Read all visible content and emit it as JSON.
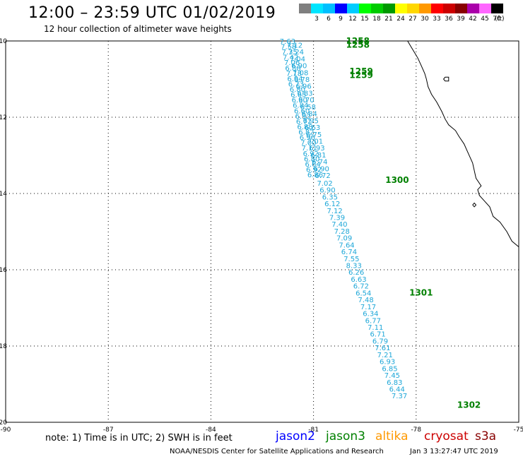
{
  "header": {
    "title": "12:00 – 23:59 UTC 01/02/2019",
    "subtitle": "12 hour collection of altimeter wave heights"
  },
  "colorbar": {
    "unit": "(ft)",
    "items": [
      {
        "label": "",
        "color": "#7f7f7f"
      },
      {
        "label": "3",
        "color": "#00e5ff"
      },
      {
        "label": "6",
        "color": "#00bfff"
      },
      {
        "label": "9",
        "color": "#0000ff"
      },
      {
        "label": "12",
        "color": "#00ccff"
      },
      {
        "label": "15",
        "color": "#00ff00"
      },
      {
        "label": "18",
        "color": "#00cc00"
      },
      {
        "label": "21",
        "color": "#009900"
      },
      {
        "label": "24",
        "color": "#ffff00"
      },
      {
        "label": "27",
        "color": "#ffd700"
      },
      {
        "label": "30",
        "color": "#ff9900"
      },
      {
        "label": "33",
        "color": "#ff0000"
      },
      {
        "label": "36",
        "color": "#cc0000"
      },
      {
        "label": "39",
        "color": "#880000"
      },
      {
        "label": "42",
        "color": "#aa00aa"
      },
      {
        "label": "45",
        "color": "#ff66ff"
      },
      {
        "label": "70",
        "color": "#000000"
      }
    ]
  },
  "map": {
    "lon_range": [
      -90,
      -75
    ],
    "lat_range": [
      -20,
      -10
    ],
    "lon_ticks": [
      {
        "value": -90,
        "label": "-90"
      },
      {
        "value": -87,
        "label": "-87"
      },
      {
        "value": -84,
        "label": "-84"
      },
      {
        "value": -81,
        "label": "-81"
      },
      {
        "value": -78,
        "label": "-78"
      },
      {
        "value": -75,
        "label": "-75"
      }
    ],
    "lat_ticks": [
      {
        "value": -10,
        "label": "-10"
      },
      {
        "value": -12,
        "label": "-12"
      },
      {
        "value": -14,
        "label": "-14"
      },
      {
        "value": -16,
        "label": "-16"
      },
      {
        "value": -18,
        "label": "-18"
      },
      {
        "value": -20,
        "label": "-20"
      }
    ],
    "track_color": "#1ea7d8",
    "time_color": "#008000",
    "coast_color": "#000000",
    "track_upper": [
      {
        "lon": -81.99,
        "lat": -10.0,
        "label": "7.63"
      },
      {
        "lon": -81.96,
        "lat": -10.14,
        "label": "7.58"
      },
      {
        "lon": -81.93,
        "lat": -10.28,
        "label": "7.35"
      },
      {
        "lon": -81.9,
        "lat": -10.42,
        "label": "7.42"
      },
      {
        "lon": -81.86,
        "lat": -10.56,
        "label": "7.06"
      },
      {
        "lon": -81.83,
        "lat": -10.7,
        "label": "6.88"
      },
      {
        "lon": -81.8,
        "lat": -10.84,
        "label": "7.18"
      },
      {
        "lon": -81.77,
        "lat": -10.98,
        "label": "6.94"
      },
      {
        "lon": -81.74,
        "lat": -11.12,
        "label": "6.73"
      },
      {
        "lon": -81.7,
        "lat": -11.26,
        "label": "6.80"
      },
      {
        "lon": -81.67,
        "lat": -11.4,
        "label": "6.65"
      },
      {
        "lon": -81.64,
        "lat": -11.54,
        "label": "6.90"
      },
      {
        "lon": -81.61,
        "lat": -11.68,
        "label": "6.84"
      },
      {
        "lon": -81.57,
        "lat": -11.82,
        "label": "6.60"
      },
      {
        "lon": -81.54,
        "lat": -11.96,
        "label": "6.92"
      },
      {
        "lon": -81.51,
        "lat": -12.1,
        "label": "6.71"
      },
      {
        "lon": -81.48,
        "lat": -12.24,
        "label": "6.88"
      },
      {
        "lon": -81.44,
        "lat": -12.38,
        "label": "6.82"
      },
      {
        "lon": -81.41,
        "lat": -12.52,
        "label": "6.96"
      },
      {
        "lon": -81.38,
        "lat": -12.66,
        "label": "7.00"
      },
      {
        "lon": -81.35,
        "lat": -12.8,
        "label": "7.11"
      },
      {
        "lon": -81.31,
        "lat": -12.94,
        "label": "6.92"
      },
      {
        "lon": -81.28,
        "lat": -13.08,
        "label": "6.80"
      },
      {
        "lon": -81.25,
        "lat": -13.22,
        "label": "6.64"
      },
      {
        "lon": -81.22,
        "lat": -13.36,
        "label": "6.92"
      },
      {
        "lon": -81.18,
        "lat": -13.5,
        "label": "6.86"
      }
    ],
    "track_upper2": [
      {
        "lon": -81.78,
        "lat": -10.1,
        "label": "7.12"
      },
      {
        "lon": -81.74,
        "lat": -10.28,
        "label": "7.24"
      },
      {
        "lon": -81.7,
        "lat": -10.46,
        "label": "7.04"
      },
      {
        "lon": -81.65,
        "lat": -10.64,
        "label": "6.90"
      },
      {
        "lon": -81.61,
        "lat": -10.82,
        "label": "7.08"
      },
      {
        "lon": -81.57,
        "lat": -11.0,
        "label": "6.78"
      },
      {
        "lon": -81.52,
        "lat": -11.18,
        "label": "6.96"
      },
      {
        "lon": -81.48,
        "lat": -11.36,
        "label": "6.83"
      },
      {
        "lon": -81.44,
        "lat": -11.54,
        "label": "6.70"
      },
      {
        "lon": -81.39,
        "lat": -11.72,
        "label": "6.58"
      },
      {
        "lon": -81.35,
        "lat": -11.9,
        "label": "6.84"
      },
      {
        "lon": -81.31,
        "lat": -12.08,
        "label": "6.95"
      },
      {
        "lon": -81.26,
        "lat": -12.26,
        "label": "6.63"
      },
      {
        "lon": -81.22,
        "lat": -12.44,
        "label": "6.75"
      },
      {
        "lon": -81.18,
        "lat": -12.62,
        "label": "7.01"
      },
      {
        "lon": -81.13,
        "lat": -12.8,
        "label": "6.93"
      },
      {
        "lon": -81.09,
        "lat": -12.98,
        "label": "6.81"
      },
      {
        "lon": -81.05,
        "lat": -13.16,
        "label": "6.74"
      },
      {
        "lon": -81.0,
        "lat": -13.34,
        "label": "6.90"
      },
      {
        "lon": -80.96,
        "lat": -13.52,
        "label": "6.72"
      }
    ],
    "track_lower": [
      {
        "lon": -80.9,
        "lat": -13.72,
        "label": "7.02"
      },
      {
        "lon": -80.82,
        "lat": -13.9,
        "label": "6.90"
      },
      {
        "lon": -80.75,
        "lat": -14.08,
        "label": "6.35"
      },
      {
        "lon": -80.68,
        "lat": -14.26,
        "label": "6.12"
      },
      {
        "lon": -80.61,
        "lat": -14.44,
        "label": "7.12"
      },
      {
        "lon": -80.54,
        "lat": -14.62,
        "label": "7.39"
      },
      {
        "lon": -80.47,
        "lat": -14.8,
        "label": "7.40"
      },
      {
        "lon": -80.4,
        "lat": -14.98,
        "label": "7.28"
      },
      {
        "lon": -80.33,
        "lat": -15.16,
        "label": "7.09"
      },
      {
        "lon": -80.26,
        "lat": -15.34,
        "label": "7.64"
      },
      {
        "lon": -80.19,
        "lat": -15.52,
        "label": "6.74"
      },
      {
        "lon": -80.12,
        "lat": -15.7,
        "label": "7.55"
      },
      {
        "lon": -80.05,
        "lat": -15.88,
        "label": "8.33"
      },
      {
        "lon": -79.98,
        "lat": -16.06,
        "label": "6.26"
      },
      {
        "lon": -79.91,
        "lat": -16.24,
        "label": "6.63"
      },
      {
        "lon": -79.84,
        "lat": -16.42,
        "label": "6.72"
      },
      {
        "lon": -79.77,
        "lat": -16.6,
        "label": "6.54"
      },
      {
        "lon": -79.7,
        "lat": -16.78,
        "label": "7.48"
      },
      {
        "lon": -79.63,
        "lat": -16.96,
        "label": "7.17"
      },
      {
        "lon": -79.56,
        "lat": -17.14,
        "label": "6.34"
      },
      {
        "lon": -79.49,
        "lat": -17.32,
        "label": "6.77"
      },
      {
        "lon": -79.42,
        "lat": -17.5,
        "label": "7.11"
      },
      {
        "lon": -79.35,
        "lat": -17.68,
        "label": "6.71"
      },
      {
        "lon": -79.28,
        "lat": -17.86,
        "label": "6.79"
      },
      {
        "lon": -79.21,
        "lat": -18.04,
        "label": "7.61"
      },
      {
        "lon": -79.14,
        "lat": -18.22,
        "label": "7.21"
      },
      {
        "lon": -79.07,
        "lat": -18.4,
        "label": "6.93"
      },
      {
        "lon": -79.0,
        "lat": -18.58,
        "label": "6.85"
      },
      {
        "lon": -78.93,
        "lat": -18.76,
        "label": "7.45"
      },
      {
        "lon": -78.86,
        "lat": -18.94,
        "label": "6.83"
      },
      {
        "lon": -78.79,
        "lat": -19.12,
        "label": "6.44"
      },
      {
        "lon": -78.72,
        "lat": -19.3,
        "label": "7.37"
      }
    ],
    "time_labels": [
      {
        "lon": -80.05,
        "lat": -10.0,
        "label": "1258"
      },
      {
        "lon": -80.05,
        "lat": -10.1,
        "label": "1258"
      },
      {
        "lon": -79.95,
        "lat": -10.8,
        "label": "1259"
      },
      {
        "lon": -79.95,
        "lat": -10.9,
        "label": "1259"
      },
      {
        "lon": -78.9,
        "lat": -13.65,
        "label": "1300"
      },
      {
        "lon": -78.2,
        "lat": -16.6,
        "label": "1301"
      },
      {
        "lon": -76.8,
        "lat": -19.55,
        "label": "1302"
      }
    ],
    "coastline": [
      [
        -75.0,
        -15.4
      ],
      [
        -75.2,
        -15.25
      ],
      [
        -75.35,
        -15.0
      ],
      [
        -75.55,
        -14.75
      ],
      [
        -75.75,
        -14.6
      ],
      [
        -75.85,
        -14.35
      ],
      [
        -76.0,
        -14.2
      ],
      [
        -76.15,
        -14.05
      ],
      [
        -76.2,
        -13.9
      ],
      [
        -76.1,
        -13.8
      ],
      [
        -76.25,
        -13.6
      ],
      [
        -76.3,
        -13.4
      ],
      [
        -76.35,
        -13.2
      ],
      [
        -76.5,
        -12.9
      ],
      [
        -76.6,
        -12.7
      ],
      [
        -76.75,
        -12.5
      ],
      [
        -76.85,
        -12.35
      ],
      [
        -77.05,
        -12.2
      ],
      [
        -77.15,
        -12.05
      ],
      [
        -77.25,
        -11.85
      ],
      [
        -77.4,
        -11.6
      ],
      [
        -77.55,
        -11.4
      ],
      [
        -77.65,
        -11.2
      ],
      [
        -77.7,
        -11.0
      ],
      [
        -77.75,
        -10.85
      ],
      [
        -77.85,
        -10.65
      ],
      [
        -77.95,
        -10.45
      ],
      [
        -78.05,
        -10.3
      ],
      [
        -78.15,
        -10.15
      ],
      [
        -78.25,
        -10.0
      ]
    ],
    "island": [
      [
        -77.2,
        -11.0
      ],
      [
        -77.15,
        -10.95
      ],
      [
        -77.05,
        -10.95
      ],
      [
        -77.05,
        -11.05
      ],
      [
        -77.15,
        -11.05
      ],
      [
        -77.2,
        -11.0
      ]
    ],
    "island2": [
      [
        -76.35,
        -14.3
      ],
      [
        -76.3,
        -14.25
      ],
      [
        -76.25,
        -14.3
      ],
      [
        -76.3,
        -14.35
      ],
      [
        -76.35,
        -14.3
      ]
    ]
  },
  "footer": {
    "note": "note: 1) Time is in UTC; 2) SWH is in feet",
    "legend": [
      {
        "label": "jason2",
        "color": "#0000ff"
      },
      {
        "label": "jason3",
        "color": "#008000"
      },
      {
        "label": "altika",
        "color": "#ff9900"
      },
      {
        "label": "cryosat",
        "color": "#cc0000"
      },
      {
        "label": "s3a",
        "color": "#880000"
      }
    ],
    "credit": "NOAA/NESDIS Center for Satellite Applications and Research",
    "timestamp": "Jan  3 13:27:47 UTC 2019"
  }
}
